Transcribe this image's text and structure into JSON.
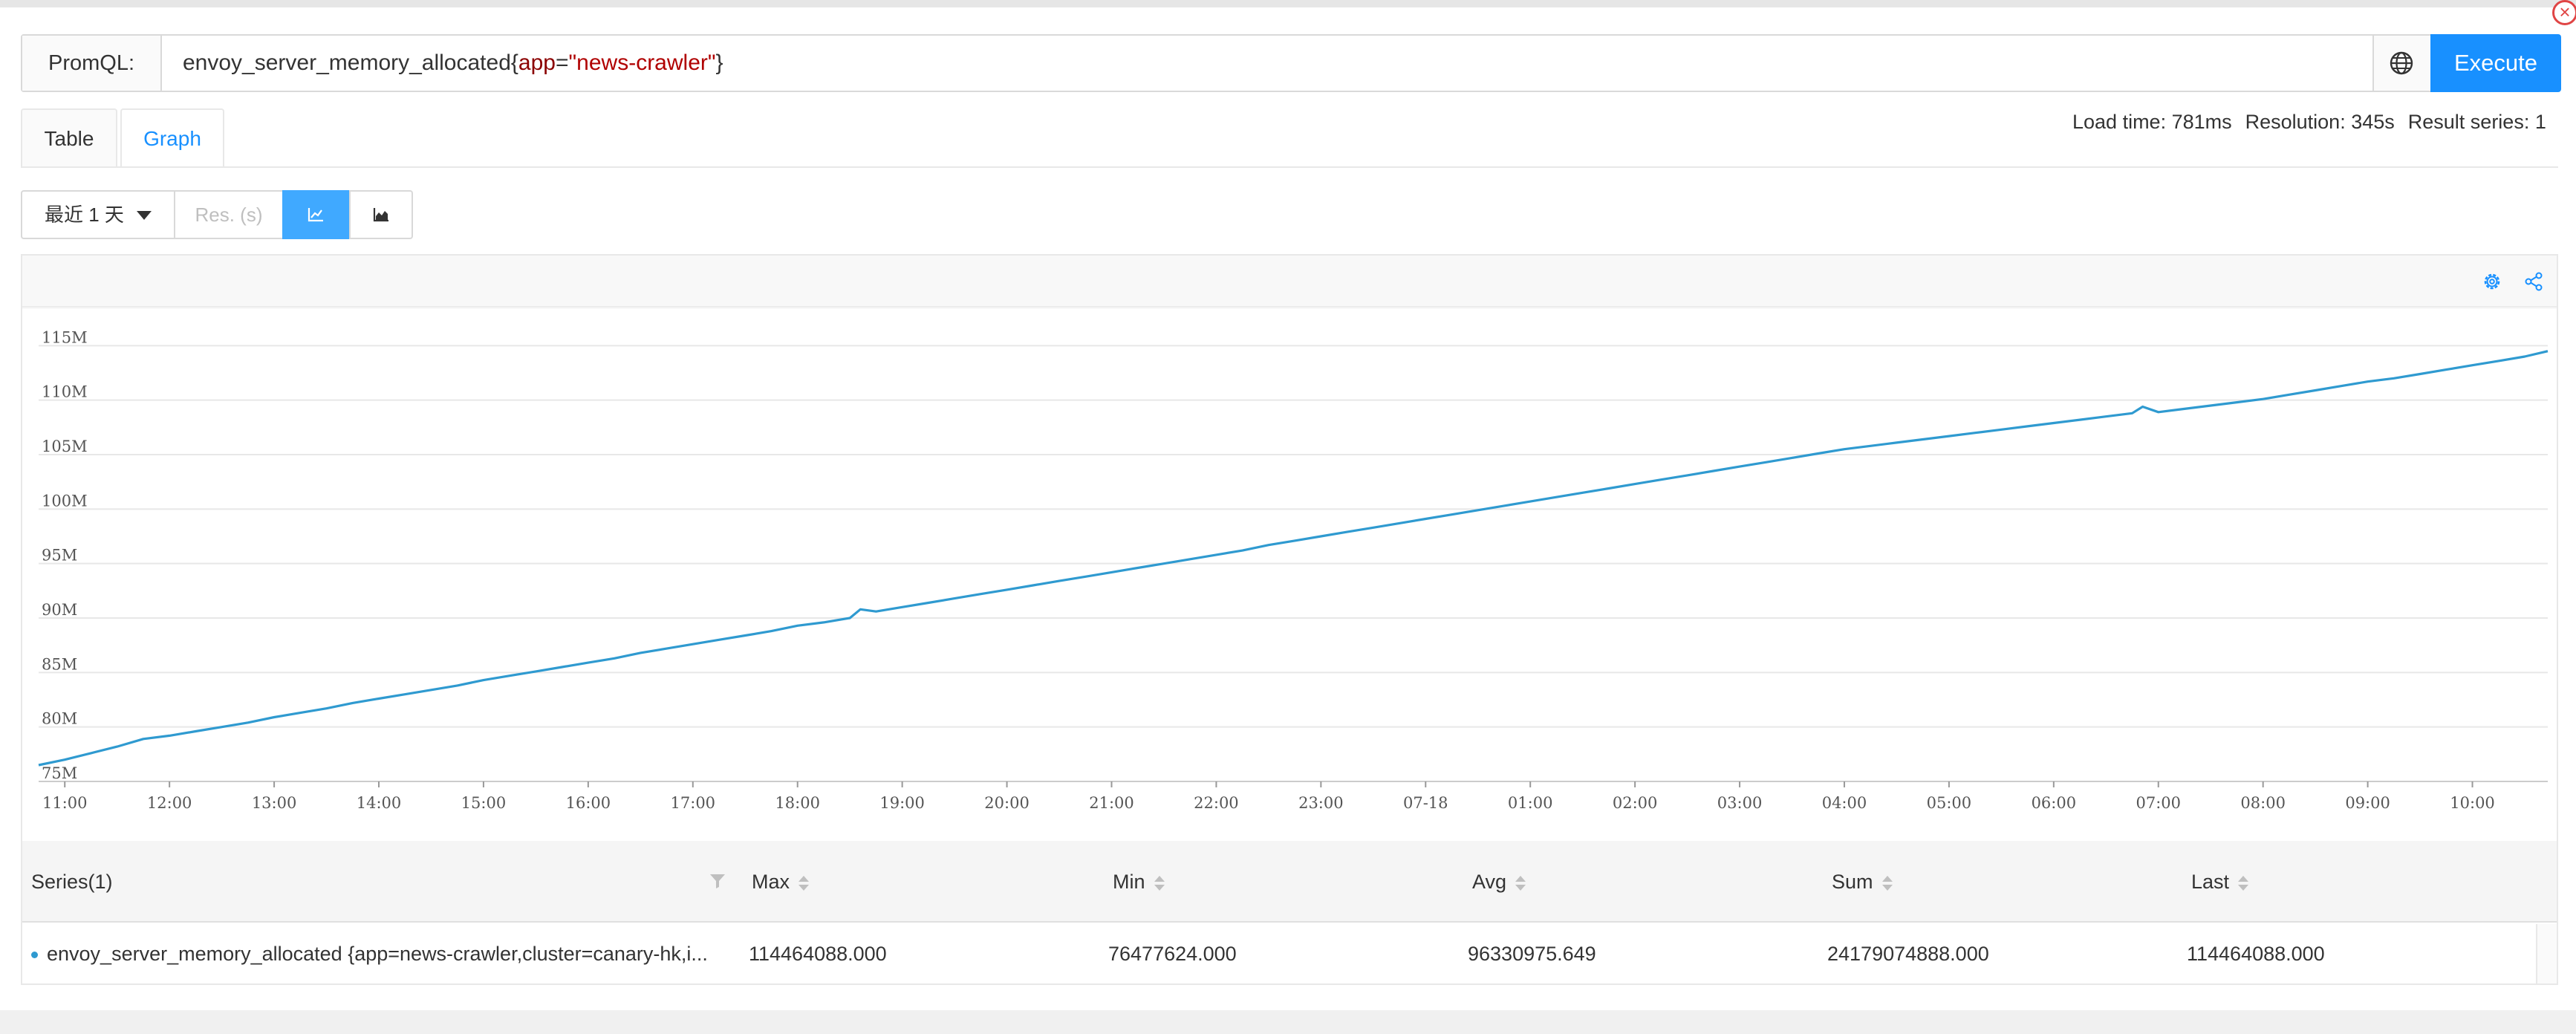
{
  "query": {
    "label": "PromQL:",
    "metric": "envoy_server_memory_allocated",
    "open_brace": "{",
    "key": "app",
    "eq": "=",
    "value": "\"news-crawler\"",
    "close_brace": "}",
    "execute_label": "Execute",
    "globe_icon": "globe-icon"
  },
  "tabs": [
    {
      "label": "Table",
      "active": false
    },
    {
      "label": "Graph",
      "active": true
    }
  ],
  "meta": {
    "load_time": "Load time: 781ms",
    "resolution": "Resolution: 345s",
    "result_series": "Result series: 1"
  },
  "controls": {
    "range_label": "最近 1 天",
    "res_placeholder": "Res. (s)",
    "line_icon": "line-chart-icon",
    "area_icon": "area-chart-icon"
  },
  "colors": {
    "accent": "#1890ff",
    "series": "#2f9ad0"
  },
  "chart_data": {
    "type": "line",
    "title": "",
    "xlabel": "",
    "ylabel": "",
    "ylim": [
      75,
      117
    ],
    "y_ticks": [
      "75M",
      "80M",
      "85M",
      "90M",
      "95M",
      "100M",
      "105M",
      "110M",
      "115M"
    ],
    "y_tick_values": [
      75,
      80,
      85,
      90,
      95,
      100,
      105,
      110,
      115
    ],
    "x_ticks": [
      "11:00",
      "12:00",
      "13:00",
      "14:00",
      "15:00",
      "16:00",
      "17:00",
      "18:00",
      "19:00",
      "20:00",
      "21:00",
      "22:00",
      "23:00",
      "07-18",
      "01:00",
      "02:00",
      "03:00",
      "04:00",
      "05:00",
      "06:00",
      "07:00",
      "08:00",
      "09:00",
      "10:00"
    ],
    "x_tick_hours": [
      11,
      12,
      13,
      14,
      15,
      16,
      17,
      18,
      19,
      20,
      21,
      22,
      23,
      24,
      25,
      26,
      27,
      28,
      29,
      30,
      31,
      32,
      33,
      34
    ],
    "x_range_hours": [
      10.75,
      34.72
    ],
    "grid": true,
    "legend": "none",
    "series": [
      {
        "x_hours": [
          10.75,
          11.0,
          11.25,
          11.5,
          11.75,
          12.0,
          12.25,
          12.5,
          12.75,
          13.0,
          13.25,
          13.5,
          13.75,
          14.0,
          14.25,
          14.5,
          14.75,
          15.0,
          15.25,
          15.5,
          15.75,
          16.0,
          16.25,
          16.5,
          16.75,
          17.0,
          17.25,
          17.5,
          17.75,
          18.0,
          18.25,
          18.5,
          18.6,
          18.75,
          19.0,
          19.25,
          19.5,
          19.75,
          20.0,
          20.25,
          20.5,
          20.75,
          21.0,
          21.25,
          21.5,
          21.75,
          22.0,
          22.25,
          22.5,
          22.75,
          23.0,
          23.25,
          23.5,
          23.75,
          24.0,
          24.25,
          24.5,
          24.75,
          25.0,
          25.25,
          25.5,
          25.75,
          26.0,
          26.25,
          26.5,
          26.75,
          27.0,
          27.25,
          27.5,
          27.75,
          28.0,
          28.25,
          28.5,
          28.75,
          29.0,
          29.25,
          29.5,
          29.75,
          30.0,
          30.25,
          30.5,
          30.75,
          30.85,
          31.0,
          31.25,
          31.5,
          31.75,
          32.0,
          32.25,
          32.5,
          32.75,
          33.0,
          33.25,
          33.5,
          33.75,
          34.0,
          34.25,
          34.5,
          34.72
        ],
        "values": [
          76.5,
          77.0,
          77.6,
          78.2,
          78.9,
          79.2,
          79.6,
          80.0,
          80.4,
          80.9,
          81.3,
          81.7,
          82.2,
          82.6,
          83.0,
          83.4,
          83.8,
          84.3,
          84.7,
          85.1,
          85.5,
          85.9,
          86.3,
          86.8,
          87.2,
          87.6,
          88.0,
          88.4,
          88.8,
          89.3,
          89.6,
          90.0,
          90.8,
          90.6,
          91.0,
          91.4,
          91.8,
          92.2,
          92.6,
          93.0,
          93.4,
          93.8,
          94.2,
          94.6,
          95.0,
          95.4,
          95.8,
          96.2,
          96.7,
          97.1,
          97.5,
          97.9,
          98.3,
          98.7,
          99.1,
          99.5,
          99.9,
          100.3,
          100.7,
          101.1,
          101.5,
          101.9,
          102.3,
          102.7,
          103.1,
          103.5,
          103.9,
          104.3,
          104.7,
          105.1,
          105.5,
          105.8,
          106.1,
          106.4,
          106.7,
          107.0,
          107.3,
          107.6,
          107.9,
          108.2,
          108.5,
          108.8,
          109.4,
          108.9,
          109.2,
          109.5,
          109.8,
          110.1,
          110.5,
          110.9,
          111.3,
          111.7,
          112.0,
          112.4,
          112.8,
          113.2,
          113.6,
          114.0,
          114.5
        ]
      }
    ]
  },
  "table": {
    "headers": {
      "series": "Series(1)",
      "max": "Max",
      "min": "Min",
      "avg": "Avg",
      "sum": "Sum",
      "last": "Last"
    },
    "rows": [
      {
        "series": "envoy_server_memory_allocated {app=news-crawler,cluster=canary-hk,i...",
        "max": "114464088.000",
        "min": "76477624.000",
        "avg": "96330975.649",
        "sum": "24179074888.000",
        "last": "114464088.000"
      }
    ]
  }
}
